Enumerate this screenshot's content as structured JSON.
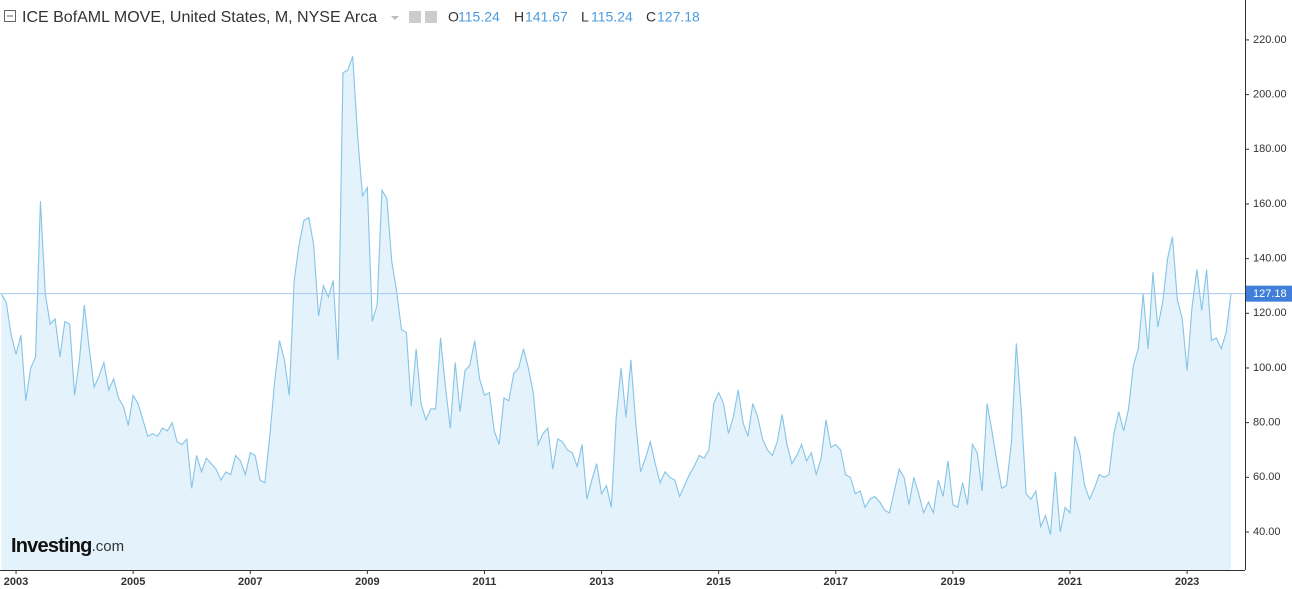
{
  "header": {
    "title": "ICE BofAML MOVE, United States, M, NYSE Arca",
    "o_label": "O",
    "open": 115.24,
    "h_label": "H",
    "high": 141.67,
    "l_label": "L",
    "low": 115.24,
    "c_label": "C",
    "close": 127.18
  },
  "logo": {
    "brand": "Investing",
    "suffix": ".com"
  },
  "chart_data": {
    "type": "area",
    "color": "#86c4e6",
    "fill": "#e3f2fb",
    "categories": [
      null,
      null,
      null,
      "2003",
      null,
      null,
      null,
      null,
      null,
      null,
      null,
      null,
      null,
      null,
      null,
      null,
      null,
      null,
      null,
      null,
      null,
      null,
      null,
      null,
      null,
      null,
      null,
      "2005",
      null,
      null,
      null,
      null,
      null,
      null,
      null,
      null,
      null,
      null,
      null,
      null,
      null,
      null,
      null,
      null,
      null,
      null,
      null,
      null,
      null,
      null,
      null,
      "2007",
      null,
      null,
      null,
      null,
      null,
      null,
      null,
      null,
      null,
      null,
      null,
      null,
      null,
      null,
      null,
      null,
      null,
      null,
      null,
      null,
      null,
      null,
      null,
      "2009",
      null,
      null,
      null,
      null,
      null,
      null,
      null,
      null,
      null,
      null,
      null,
      null,
      null,
      null,
      null,
      null,
      null,
      null,
      null,
      null,
      null,
      null,
      null,
      "2011",
      null,
      null,
      null,
      null,
      null,
      null,
      null,
      null,
      null,
      null,
      null,
      null,
      null,
      null,
      null,
      null,
      null,
      null,
      null,
      null,
      null,
      null,
      null,
      "2013",
      null,
      null,
      null,
      null,
      null,
      null,
      null,
      null,
      null,
      null,
      null,
      null,
      null,
      null,
      null,
      null,
      null,
      null,
      null,
      null,
      null,
      null,
      null,
      "2015",
      null,
      null,
      null,
      null,
      null,
      null,
      null,
      null,
      null,
      null,
      null,
      null,
      null,
      null,
      null,
      null,
      null,
      null,
      null,
      null,
      null,
      null,
      null,
      "2017",
      null,
      null,
      null,
      null,
      null,
      null,
      null,
      null,
      null,
      null,
      null,
      null,
      null,
      null,
      null,
      null,
      null,
      null,
      null,
      null,
      null,
      null,
      null,
      "2019",
      null,
      null,
      null,
      null,
      null,
      null,
      null,
      null,
      null,
      null,
      null,
      null,
      null,
      null,
      null,
      null,
      null,
      null,
      null,
      null,
      null,
      null,
      null,
      "2021",
      null,
      null,
      null,
      null,
      null,
      null,
      null,
      null,
      null,
      null,
      null,
      null,
      null,
      null,
      null,
      null,
      null,
      null,
      null,
      null,
      null,
      null,
      null,
      "2023",
      null,
      null,
      null,
      null,
      null,
      null,
      null,
      null,
      null
    ],
    "values": [
      127,
      124,
      112,
      105,
      112,
      88,
      100,
      104,
      161,
      127,
      116,
      118,
      104,
      117,
      116,
      90,
      103,
      123,
      107,
      93,
      97,
      102,
      92,
      96,
      89,
      86,
      79,
      90,
      87,
      81,
      75,
      76,
      75,
      78,
      77,
      80,
      73,
      72,
      74,
      56,
      68,
      62,
      67,
      65,
      63,
      59,
      62,
      61,
      68,
      66,
      61,
      69,
      68,
      59,
      58,
      75,
      95,
      110,
      103,
      90,
      132,
      145,
      154,
      155,
      145,
      119,
      130,
      126,
      132,
      103,
      208,
      209,
      214,
      185,
      163,
      166,
      117,
      123,
      165,
      162,
      139,
      128,
      114,
      113,
      86,
      107,
      87,
      81,
      85,
      85,
      111,
      93,
      78,
      102,
      84,
      99,
      101,
      110,
      96,
      90,
      91,
      77,
      72,
      89,
      88,
      98,
      100,
      107,
      100,
      91,
      72,
      76,
      78,
      63,
      74,
      73,
      70,
      69,
      64,
      72,
      52,
      59,
      65,
      54,
      57,
      49,
      82,
      100,
      82,
      103,
      80,
      62,
      67,
      73,
      65,
      58,
      62,
      60,
      59,
      53,
      57,
      61,
      64,
      68,
      67,
      70,
      87,
      91,
      87,
      76,
      82,
      92,
      80,
      75,
      87,
      82,
      74,
      70,
      68,
      73,
      83,
      72,
      65,
      68,
      72,
      66,
      69,
      61,
      67,
      81,
      71,
      72,
      70,
      61,
      60,
      54,
      55,
      49,
      52,
      53,
      51,
      48,
      47,
      55,
      63,
      60,
      50,
      60,
      54,
      47,
      51,
      47,
      59,
      53,
      66,
      50,
      49,
      58,
      50,
      72,
      69,
      55,
      87,
      77,
      66,
      56,
      57,
      73,
      109,
      85,
      54,
      52,
      55,
      42,
      46,
      39,
      62,
      40,
      49,
      47,
      75,
      69,
      57,
      52,
      56,
      61,
      60,
      61,
      76,
      84,
      77,
      85,
      101,
      107,
      127,
      107,
      135,
      115,
      124,
      140,
      148,
      125,
      118,
      99,
      122,
      136,
      121,
      136,
      110,
      111,
      107,
      113,
      127.18
    ],
    "ylim": [
      26.1,
      234.6
    ],
    "yticks": [
      {
        "value": 40,
        "label": "40.00"
      },
      {
        "value": 60,
        "label": "60.00"
      },
      {
        "value": 80,
        "label": "80.00"
      },
      {
        "value": 100,
        "label": "100.00"
      },
      {
        "value": 120,
        "label": "120.00"
      },
      {
        "value": 140,
        "label": "140.00"
      },
      {
        "value": 160,
        "label": "160.00"
      },
      {
        "value": 180,
        "label": "180.00"
      },
      {
        "value": 200,
        "label": "200.00"
      },
      {
        "value": 220,
        "label": "220.00"
      }
    ],
    "price_line": {
      "value": 127.18,
      "label": "127.18",
      "color": "#3f7fd9"
    },
    "grid": false
  }
}
